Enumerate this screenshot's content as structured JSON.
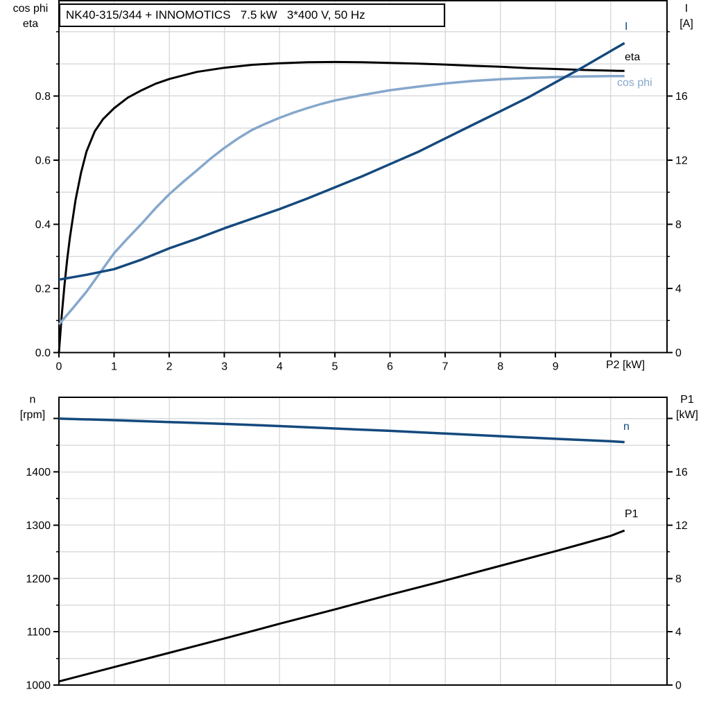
{
  "title": "NK40-315/344 + INNOMOTICS   7.5 kW   3*400 V, 50 Hz",
  "labels": {
    "top_chart": {
      "left_line1": "cos phi",
      "left_line2": "eta",
      "right_line1": "I",
      "right_line2": "[A]",
      "x_axis": "P2 [kW]"
    },
    "bottom_chart": {
      "left_line1": "n",
      "left_line2": "[rpm]",
      "right_line1": "P1",
      "right_line2": "[kW]"
    }
  },
  "colors": {
    "curve_dark_blue": "#14497D",
    "curve_light_blue": "#86A7CC",
    "curve_black": "#000000",
    "grid": "#D8DBDD",
    "axis": "#000000",
    "background": "#FFFFFF"
  },
  "chart_data": [
    {
      "type": "line",
      "title": "NK40-315/344 + INNOMOTICS 7.5 kW 3*400 V, 50 Hz",
      "xlabel": "P2 [kW]",
      "x_axis": {
        "range": [
          0,
          11.02
        ],
        "major_ticks": [
          {
            "v": 0,
            "label": "0"
          },
          {
            "v": 1,
            "label": "1"
          },
          {
            "v": 2,
            "label": "2"
          },
          {
            "v": 3,
            "label": "3"
          },
          {
            "v": 4,
            "label": "4"
          },
          {
            "v": 5,
            "label": "5"
          },
          {
            "v": 6,
            "label": "6"
          },
          {
            "v": 7,
            "label": "7"
          },
          {
            "v": 8,
            "label": "8"
          },
          {
            "v": 9,
            "label": "9"
          },
          {
            "v": 10,
            "label": ""
          }
        ],
        "gridlines": [
          1,
          2,
          3,
          4,
          5,
          6,
          7,
          8,
          9,
          10
        ],
        "show_tick_labels": true
      },
      "left_axis": {
        "name": "cos phi / eta",
        "range": [
          0,
          1.097
        ],
        "major_ticks": [
          {
            "v": 0.0,
            "label": "0.0"
          },
          {
            "v": 0.2,
            "label": "0.2"
          },
          {
            "v": 0.4,
            "label": "0.4"
          },
          {
            "v": 0.6,
            "label": "0.6"
          },
          {
            "v": 0.8,
            "label": "0.8"
          }
        ],
        "minor_ticks": [
          0.1,
          0.3,
          0.5,
          0.7,
          0.9,
          1.0
        ],
        "gridlines": [
          0.1,
          0.2,
          0.3,
          0.4,
          0.5,
          0.6,
          0.7,
          0.8,
          0.9,
          1.0
        ]
      },
      "right_axis": {
        "name": "I [A]",
        "range": [
          0,
          21.94
        ],
        "major_ticks": [
          {
            "v": 0,
            "label": "0"
          },
          {
            "v": 4,
            "label": "4"
          },
          {
            "v": 8,
            "label": "8"
          },
          {
            "v": 12,
            "label": "12"
          },
          {
            "v": 16,
            "label": "16"
          }
        ],
        "minor_ticks": [
          2,
          6,
          10,
          14,
          18,
          20
        ]
      },
      "series": [
        {
          "name": "eta",
          "label": "eta",
          "axis": "left",
          "color": "#000000",
          "width": 3,
          "points": [
            [
              0,
              0
            ],
            [
              0.05,
              0.115
            ],
            [
              0.1,
              0.21
            ],
            [
              0.15,
              0.29
            ],
            [
              0.2,
              0.36
            ],
            [
              0.3,
              0.475
            ],
            [
              0.4,
              0.56
            ],
            [
              0.5,
              0.627
            ],
            [
              0.65,
              0.69
            ],
            [
              0.8,
              0.728
            ],
            [
              1,
              0.762
            ],
            [
              1.25,
              0.795
            ],
            [
              1.5,
              0.818
            ],
            [
              1.75,
              0.838
            ],
            [
              2,
              0.853
            ],
            [
              2.5,
              0.875
            ],
            [
              3,
              0.888
            ],
            [
              3.5,
              0.897
            ],
            [
              4,
              0.902
            ],
            [
              4.5,
              0.905
            ],
            [
              5,
              0.906
            ],
            [
              5.5,
              0.905
            ],
            [
              6,
              0.903
            ],
            [
              6.5,
              0.901
            ],
            [
              7,
              0.898
            ],
            [
              7.5,
              0.894
            ],
            [
              8,
              0.891
            ],
            [
              8.5,
              0.887
            ],
            [
              9,
              0.884
            ],
            [
              9.5,
              0.881
            ],
            [
              10,
              0.879
            ],
            [
              10.25,
              0.878
            ]
          ]
        },
        {
          "name": "cos phi",
          "label": "cos phi",
          "axis": "left",
          "color": "#86A7CC",
          "width": 3.5,
          "points": [
            [
              0,
              0.088
            ],
            [
              0.25,
              0.138
            ],
            [
              0.5,
              0.19
            ],
            [
              0.75,
              0.25
            ],
            [
              1,
              0.31
            ],
            [
              1.25,
              0.357
            ],
            [
              1.5,
              0.402
            ],
            [
              1.75,
              0.45
            ],
            [
              2,
              0.494
            ],
            [
              2.25,
              0.532
            ],
            [
              2.5,
              0.568
            ],
            [
              2.75,
              0.605
            ],
            [
              3,
              0.638
            ],
            [
              3.25,
              0.668
            ],
            [
              3.5,
              0.694
            ],
            [
              3.75,
              0.714
            ],
            [
              4,
              0.732
            ],
            [
              4.25,
              0.748
            ],
            [
              4.5,
              0.762
            ],
            [
              4.75,
              0.775
            ],
            [
              5,
              0.786
            ],
            [
              5.5,
              0.803
            ],
            [
              6,
              0.818
            ],
            [
              6.5,
              0.829
            ],
            [
              7,
              0.839
            ],
            [
              7.5,
              0.847
            ],
            [
              8,
              0.852
            ],
            [
              8.5,
              0.856
            ],
            [
              9,
              0.859
            ],
            [
              9.5,
              0.861
            ],
            [
              10,
              0.862
            ],
            [
              10.25,
              0.862
            ]
          ]
        },
        {
          "name": "I",
          "label": "I",
          "axis": "right",
          "color": "#14497D",
          "width": 3.5,
          "points": [
            [
              0,
              4.55
            ],
            [
              0.5,
              4.85
            ],
            [
              1,
              5.2
            ],
            [
              1.5,
              5.8
            ],
            [
              2,
              6.5
            ],
            [
              2.5,
              7.1
            ],
            [
              3,
              7.75
            ],
            [
              3.5,
              8.35
            ],
            [
              4,
              8.95
            ],
            [
              4.5,
              9.6
            ],
            [
              5,
              10.3
            ],
            [
              5.5,
              11.0
            ],
            [
              6,
              11.75
            ],
            [
              6.5,
              12.5
            ],
            [
              7,
              13.35
            ],
            [
              7.5,
              14.2
            ],
            [
              8,
              15.05
            ],
            [
              8.5,
              15.9
            ],
            [
              9,
              16.85
            ],
            [
              9.5,
              17.8
            ],
            [
              10,
              18.8
            ],
            [
              10.25,
              19.3
            ]
          ]
        }
      ]
    },
    {
      "type": "line",
      "title": "",
      "xlabel": "",
      "x_axis": {
        "range": [
          0,
          11.02
        ],
        "major_ticks": [],
        "gridlines": [
          1,
          2,
          3,
          4,
          5,
          6,
          7,
          8,
          9,
          10
        ],
        "show_tick_labels": false
      },
      "left_axis": {
        "name": "n [rpm]",
        "range": [
          1000,
          1540
        ],
        "major_ticks": [
          {
            "v": 1000,
            "label": "1000"
          },
          {
            "v": 1100,
            "label": "1100"
          },
          {
            "v": 1200,
            "label": "1200"
          },
          {
            "v": 1300,
            "label": "1300"
          },
          {
            "v": 1400,
            "label": "1400"
          },
          {
            "v": 1500,
            "label": ""
          }
        ],
        "minor_ticks": [
          1050,
          1150,
          1250,
          1350,
          1450
        ],
        "gridlines": [
          1050,
          1100,
          1150,
          1200,
          1250,
          1300,
          1350,
          1400,
          1450,
          1500
        ]
      },
      "right_axis": {
        "name": "P1 [kW]",
        "range": [
          0,
          21.6
        ],
        "major_ticks": [
          {
            "v": 0,
            "label": "0"
          },
          {
            "v": 4,
            "label": "4"
          },
          {
            "v": 8,
            "label": "8"
          },
          {
            "v": 12,
            "label": "12"
          },
          {
            "v": 16,
            "label": "16"
          },
          {
            "v": 20,
            "label": ""
          }
        ],
        "minor_ticks": [
          2,
          6,
          10,
          14,
          18
        ]
      },
      "series": [
        {
          "name": "n",
          "label": "n",
          "axis": "left",
          "color": "#14497D",
          "width": 3.5,
          "points": [
            [
              0,
              1500
            ],
            [
              1,
              1497
            ],
            [
              2,
              1493.5
            ],
            [
              3,
              1490
            ],
            [
              4,
              1486
            ],
            [
              5,
              1481.5
            ],
            [
              6,
              1477
            ],
            [
              7,
              1472
            ],
            [
              8,
              1467
            ],
            [
              9,
              1462
            ],
            [
              10,
              1457.5
            ],
            [
              10.25,
              1456
            ]
          ]
        },
        {
          "name": "P1",
          "label": "P1",
          "axis": "left_black",
          "color": "#000000",
          "width": 3,
          "axis_used": "right",
          "points": [
            [
              0,
              0.27
            ],
            [
              1,
              1.35
            ],
            [
              2,
              2.42
            ],
            [
              3,
              3.5
            ],
            [
              4,
              4.6
            ],
            [
              5,
              5.68
            ],
            [
              6,
              6.78
            ],
            [
              7,
              7.85
            ],
            [
              8,
              8.95
            ],
            [
              9,
              10.05
            ],
            [
              9.5,
              10.62
            ],
            [
              10,
              11.2
            ],
            [
              10.25,
              11.6
            ]
          ]
        }
      ]
    }
  ]
}
